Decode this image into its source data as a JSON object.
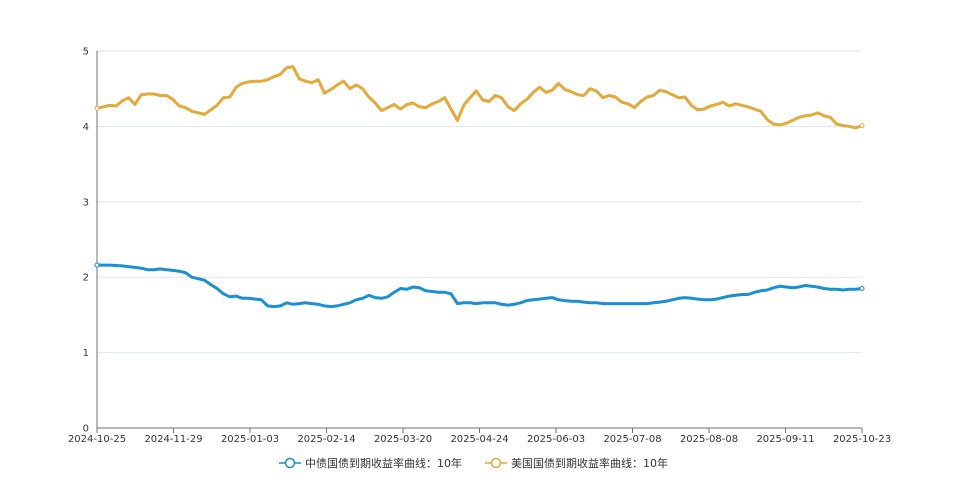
{
  "chart_data": {
    "type": "line",
    "x_ticks": [
      "2024-10-25",
      "2024-11-29",
      "2025-01-03",
      "2025-02-14",
      "2025-03-20",
      "2025-04-24",
      "2025-06-03",
      "2025-07-08",
      "2025-08-08",
      "2025-09-11",
      "2025-10-23"
    ],
    "y_ticks": [
      "0",
      "1",
      "2",
      "3",
      "4",
      "5"
    ],
    "ylim": [
      0,
      5
    ],
    "grid": true,
    "legend_position": "bottom",
    "series": [
      {
        "name": "中债国债到期收益率曲线：10年",
        "color": "#1a8fd1",
        "values": [
          [
            0,
            2.16
          ],
          [
            2,
            2.16
          ],
          [
            4,
            2.15
          ],
          [
            6,
            2.13
          ],
          [
            7,
            2.12
          ],
          [
            8,
            2.1
          ],
          [
            9,
            2.1
          ],
          [
            10,
            2.11
          ],
          [
            11,
            2.1
          ],
          [
            12,
            2.09
          ],
          [
            13,
            2.08
          ],
          [
            14,
            2.06
          ],
          [
            15,
            2.0
          ],
          [
            16,
            1.98
          ],
          [
            17,
            1.96
          ],
          [
            18,
            1.9
          ],
          [
            19,
            1.85
          ],
          [
            20,
            1.78
          ],
          [
            21,
            1.74
          ],
          [
            22,
            1.75
          ],
          [
            23,
            1.72
          ],
          [
            24,
            1.72
          ],
          [
            25,
            1.71
          ],
          [
            26,
            1.7
          ],
          [
            27,
            1.62
          ],
          [
            28,
            1.61
          ],
          [
            29,
            1.62
          ],
          [
            30,
            1.66
          ],
          [
            31,
            1.64
          ],
          [
            32,
            1.65
          ],
          [
            33,
            1.66
          ],
          [
            34,
            1.65
          ],
          [
            35,
            1.64
          ],
          [
            36,
            1.62
          ],
          [
            37,
            1.61
          ],
          [
            38,
            1.62
          ],
          [
            39,
            1.64
          ],
          [
            40,
            1.66
          ],
          [
            41,
            1.7
          ],
          [
            42,
            1.72
          ],
          [
            43,
            1.76
          ],
          [
            44,
            1.73
          ],
          [
            45,
            1.72
          ],
          [
            46,
            1.74
          ],
          [
            47,
            1.8
          ],
          [
            48,
            1.85
          ],
          [
            49,
            1.84
          ],
          [
            50,
            1.87
          ],
          [
            51,
            1.86
          ],
          [
            52,
            1.82
          ],
          [
            53,
            1.81
          ],
          [
            54,
            1.8
          ],
          [
            55,
            1.8
          ],
          [
            56,
            1.78
          ],
          [
            57,
            1.65
          ],
          [
            58,
            1.66
          ],
          [
            59,
            1.66
          ],
          [
            60,
            1.65
          ],
          [
            61,
            1.66
          ],
          [
            62,
            1.66
          ],
          [
            63,
            1.66
          ],
          [
            64,
            1.64
          ],
          [
            65,
            1.63
          ],
          [
            66,
            1.64
          ],
          [
            67,
            1.66
          ],
          [
            68,
            1.69
          ],
          [
            69,
            1.7
          ],
          [
            70,
            1.71
          ],
          [
            71,
            1.72
          ],
          [
            72,
            1.73
          ],
          [
            73,
            1.7
          ],
          [
            74,
            1.69
          ],
          [
            75,
            1.68
          ],
          [
            76,
            1.68
          ],
          [
            77,
            1.67
          ],
          [
            78,
            1.66
          ],
          [
            79,
            1.66
          ],
          [
            80,
            1.65
          ],
          [
            81,
            1.65
          ],
          [
            82,
            1.65
          ],
          [
            83,
            1.65
          ],
          [
            84,
            1.65
          ],
          [
            85,
            1.65
          ],
          [
            86,
            1.65
          ],
          [
            87,
            1.65
          ],
          [
            88,
            1.66
          ],
          [
            89,
            1.67
          ],
          [
            90,
            1.68
          ],
          [
            91,
            1.7
          ],
          [
            92,
            1.72
          ],
          [
            93,
            1.73
          ],
          [
            94,
            1.72
          ],
          [
            95,
            1.71
          ],
          [
            96,
            1.7
          ],
          [
            97,
            1.7
          ],
          [
            98,
            1.71
          ],
          [
            99,
            1.73
          ],
          [
            100,
            1.75
          ],
          [
            101,
            1.76
          ],
          [
            102,
            1.77
          ],
          [
            103,
            1.77
          ],
          [
            104,
            1.8
          ],
          [
            105,
            1.82
          ],
          [
            106,
            1.83
          ],
          [
            107,
            1.86
          ],
          [
            108,
            1.88
          ],
          [
            109,
            1.87
          ],
          [
            110,
            1.86
          ],
          [
            111,
            1.87
          ],
          [
            112,
            1.89
          ],
          [
            113,
            1.88
          ],
          [
            114,
            1.87
          ],
          [
            115,
            1.85
          ],
          [
            116,
            1.84
          ],
          [
            117,
            1.84
          ],
          [
            118,
            1.83
          ],
          [
            119,
            1.84
          ],
          [
            120,
            1.84
          ],
          [
            121,
            1.85
          ]
        ]
      },
      {
        "name": "美国国债到期收益率曲线：10年",
        "color": "#e4a93b",
        "values": [
          [
            0,
            4.24
          ],
          [
            2,
            4.28
          ],
          [
            3,
            4.27
          ],
          [
            4,
            4.34
          ],
          [
            5,
            4.38
          ],
          [
            6,
            4.29
          ],
          [
            7,
            4.42
          ],
          [
            8,
            4.43
          ],
          [
            9,
            4.43
          ],
          [
            10,
            4.41
          ],
          [
            11,
            4.41
          ],
          [
            12,
            4.36
          ],
          [
            13,
            4.27
          ],
          [
            14,
            4.25
          ],
          [
            15,
            4.2
          ],
          [
            16,
            4.18
          ],
          [
            17,
            4.16
          ],
          [
            18,
            4.22
          ],
          [
            19,
            4.28
          ],
          [
            20,
            4.38
          ],
          [
            21,
            4.39
          ],
          [
            22,
            4.52
          ],
          [
            23,
            4.57
          ],
          [
            24,
            4.59
          ],
          [
            25,
            4.6
          ],
          [
            26,
            4.6
          ],
          [
            27,
            4.62
          ],
          [
            28,
            4.66
          ],
          [
            29,
            4.69
          ],
          [
            30,
            4.78
          ],
          [
            31,
            4.79
          ],
          [
            32,
            4.63
          ],
          [
            33,
            4.6
          ],
          [
            34,
            4.58
          ],
          [
            35,
            4.62
          ],
          [
            36,
            4.44
          ],
          [
            37,
            4.49
          ],
          [
            38,
            4.55
          ],
          [
            39,
            4.6
          ],
          [
            40,
            4.5
          ],
          [
            41,
            4.55
          ],
          [
            42,
            4.5
          ],
          [
            43,
            4.39
          ],
          [
            44,
            4.31
          ],
          [
            45,
            4.21
          ],
          [
            46,
            4.25
          ],
          [
            47,
            4.29
          ],
          [
            48,
            4.23
          ],
          [
            49,
            4.29
          ],
          [
            50,
            4.31
          ],
          [
            51,
            4.26
          ],
          [
            52,
            4.25
          ],
          [
            53,
            4.3
          ],
          [
            54,
            4.33
          ],
          [
            55,
            4.38
          ],
          [
            56,
            4.23
          ],
          [
            57,
            4.08
          ],
          [
            58,
            4.28
          ],
          [
            59,
            4.38
          ],
          [
            60,
            4.47
          ],
          [
            61,
            4.35
          ],
          [
            62,
            4.33
          ],
          [
            63,
            4.41
          ],
          [
            64,
            4.38
          ],
          [
            65,
            4.26
          ],
          [
            66,
            4.21
          ],
          [
            67,
            4.3
          ],
          [
            68,
            4.36
          ],
          [
            69,
            4.45
          ],
          [
            70,
            4.52
          ],
          [
            71,
            4.45
          ],
          [
            72,
            4.48
          ],
          [
            73,
            4.57
          ],
          [
            74,
            4.49
          ],
          [
            75,
            4.46
          ],
          [
            76,
            4.42
          ],
          [
            77,
            4.41
          ],
          [
            78,
            4.5
          ],
          [
            79,
            4.47
          ],
          [
            80,
            4.38
          ],
          [
            81,
            4.41
          ],
          [
            82,
            4.39
          ],
          [
            83,
            4.32
          ],
          [
            84,
            4.3
          ],
          [
            85,
            4.25
          ],
          [
            86,
            4.33
          ],
          [
            87,
            4.39
          ],
          [
            88,
            4.41
          ],
          [
            89,
            4.48
          ],
          [
            90,
            4.46
          ],
          [
            91,
            4.42
          ],
          [
            92,
            4.38
          ],
          [
            93,
            4.39
          ],
          [
            94,
            4.28
          ],
          [
            95,
            4.22
          ],
          [
            96,
            4.23
          ],
          [
            97,
            4.27
          ],
          [
            98,
            4.29
          ],
          [
            99,
            4.32
          ],
          [
            100,
            4.27
          ],
          [
            101,
            4.3
          ],
          [
            102,
            4.28
          ],
          [
            103,
            4.26
          ],
          [
            104,
            4.23
          ],
          [
            105,
            4.2
          ],
          [
            106,
            4.09
          ],
          [
            107,
            4.03
          ],
          [
            108,
            4.02
          ],
          [
            109,
            4.04
          ],
          [
            110,
            4.08
          ],
          [
            111,
            4.12
          ],
          [
            112,
            4.14
          ],
          [
            113,
            4.15
          ],
          [
            114,
            4.18
          ],
          [
            115,
            4.14
          ],
          [
            116,
            4.12
          ],
          [
            117,
            4.03
          ],
          [
            118,
            4.01
          ],
          [
            119,
            4.0
          ],
          [
            120,
            3.98
          ],
          [
            121,
            4.01
          ]
        ]
      }
    ]
  }
}
